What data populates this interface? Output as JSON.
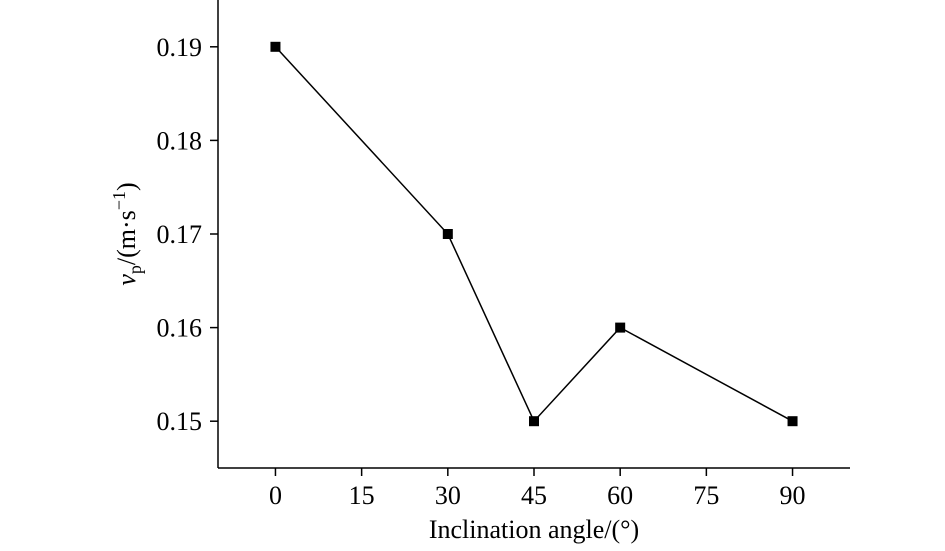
{
  "chart_data": {
    "type": "line",
    "x_label": "Inclination angle/(°)",
    "y_label_parts": [
      "v",
      "p",
      "/(m·s",
      "−1",
      ")"
    ],
    "series": [
      {
        "name": "vp",
        "color": "#000000",
        "x": [
          0,
          30,
          45,
          60,
          90
        ],
        "values": [
          0.19,
          0.17,
          0.15,
          0.16,
          0.15
        ]
      }
    ],
    "xlim": [
      -10,
      100
    ],
    "xticks": [
      0,
      15,
      30,
      45,
      60,
      75,
      90
    ],
    "ylim": [
      0.145,
      0.195
    ],
    "yticks": [
      0.15,
      0.16,
      0.17,
      0.18,
      0.19
    ],
    "marker": "square"
  }
}
